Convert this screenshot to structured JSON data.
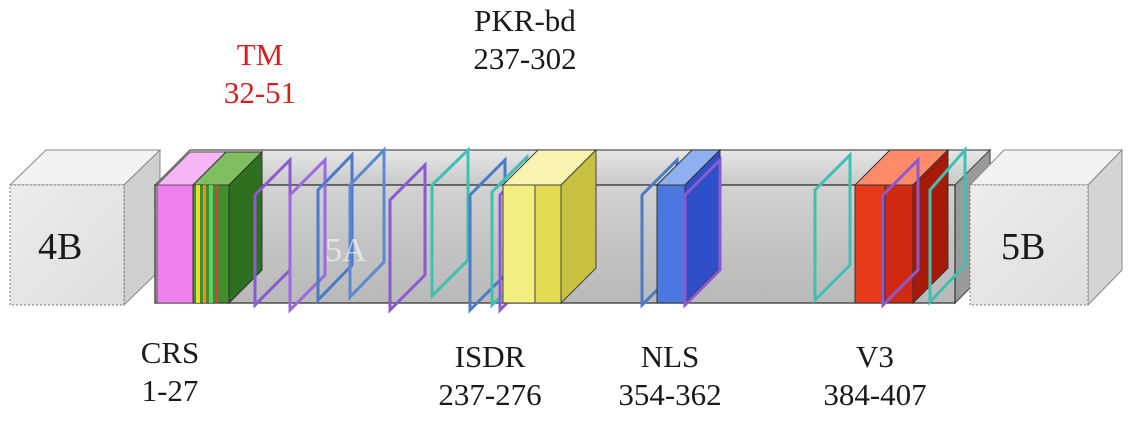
{
  "segments": {
    "tm": {
      "name": "TM",
      "range": "32-51",
      "color": "#d42020"
    },
    "pkr": {
      "name": "PKR-bd",
      "range": "237-302"
    },
    "crs": {
      "name": "CRS",
      "range": "1-27"
    },
    "isdr": {
      "name": "ISDR",
      "range": "237-276"
    },
    "nls": {
      "name": "NLS",
      "range": "354-362"
    },
    "v3": {
      "name": "V3",
      "range": "384-407"
    }
  },
  "flanks": {
    "left": "4B",
    "right": "5B"
  },
  "faint_text": "5A",
  "colors": {
    "bar": "#cccccc",
    "crs": "#f07ff0",
    "tm_green": "#3f8f2f",
    "isdr": "#f3ee80",
    "nls": "#4a6fd8",
    "v3": "#e83a1a",
    "flank": "#e6e6e6"
  }
}
